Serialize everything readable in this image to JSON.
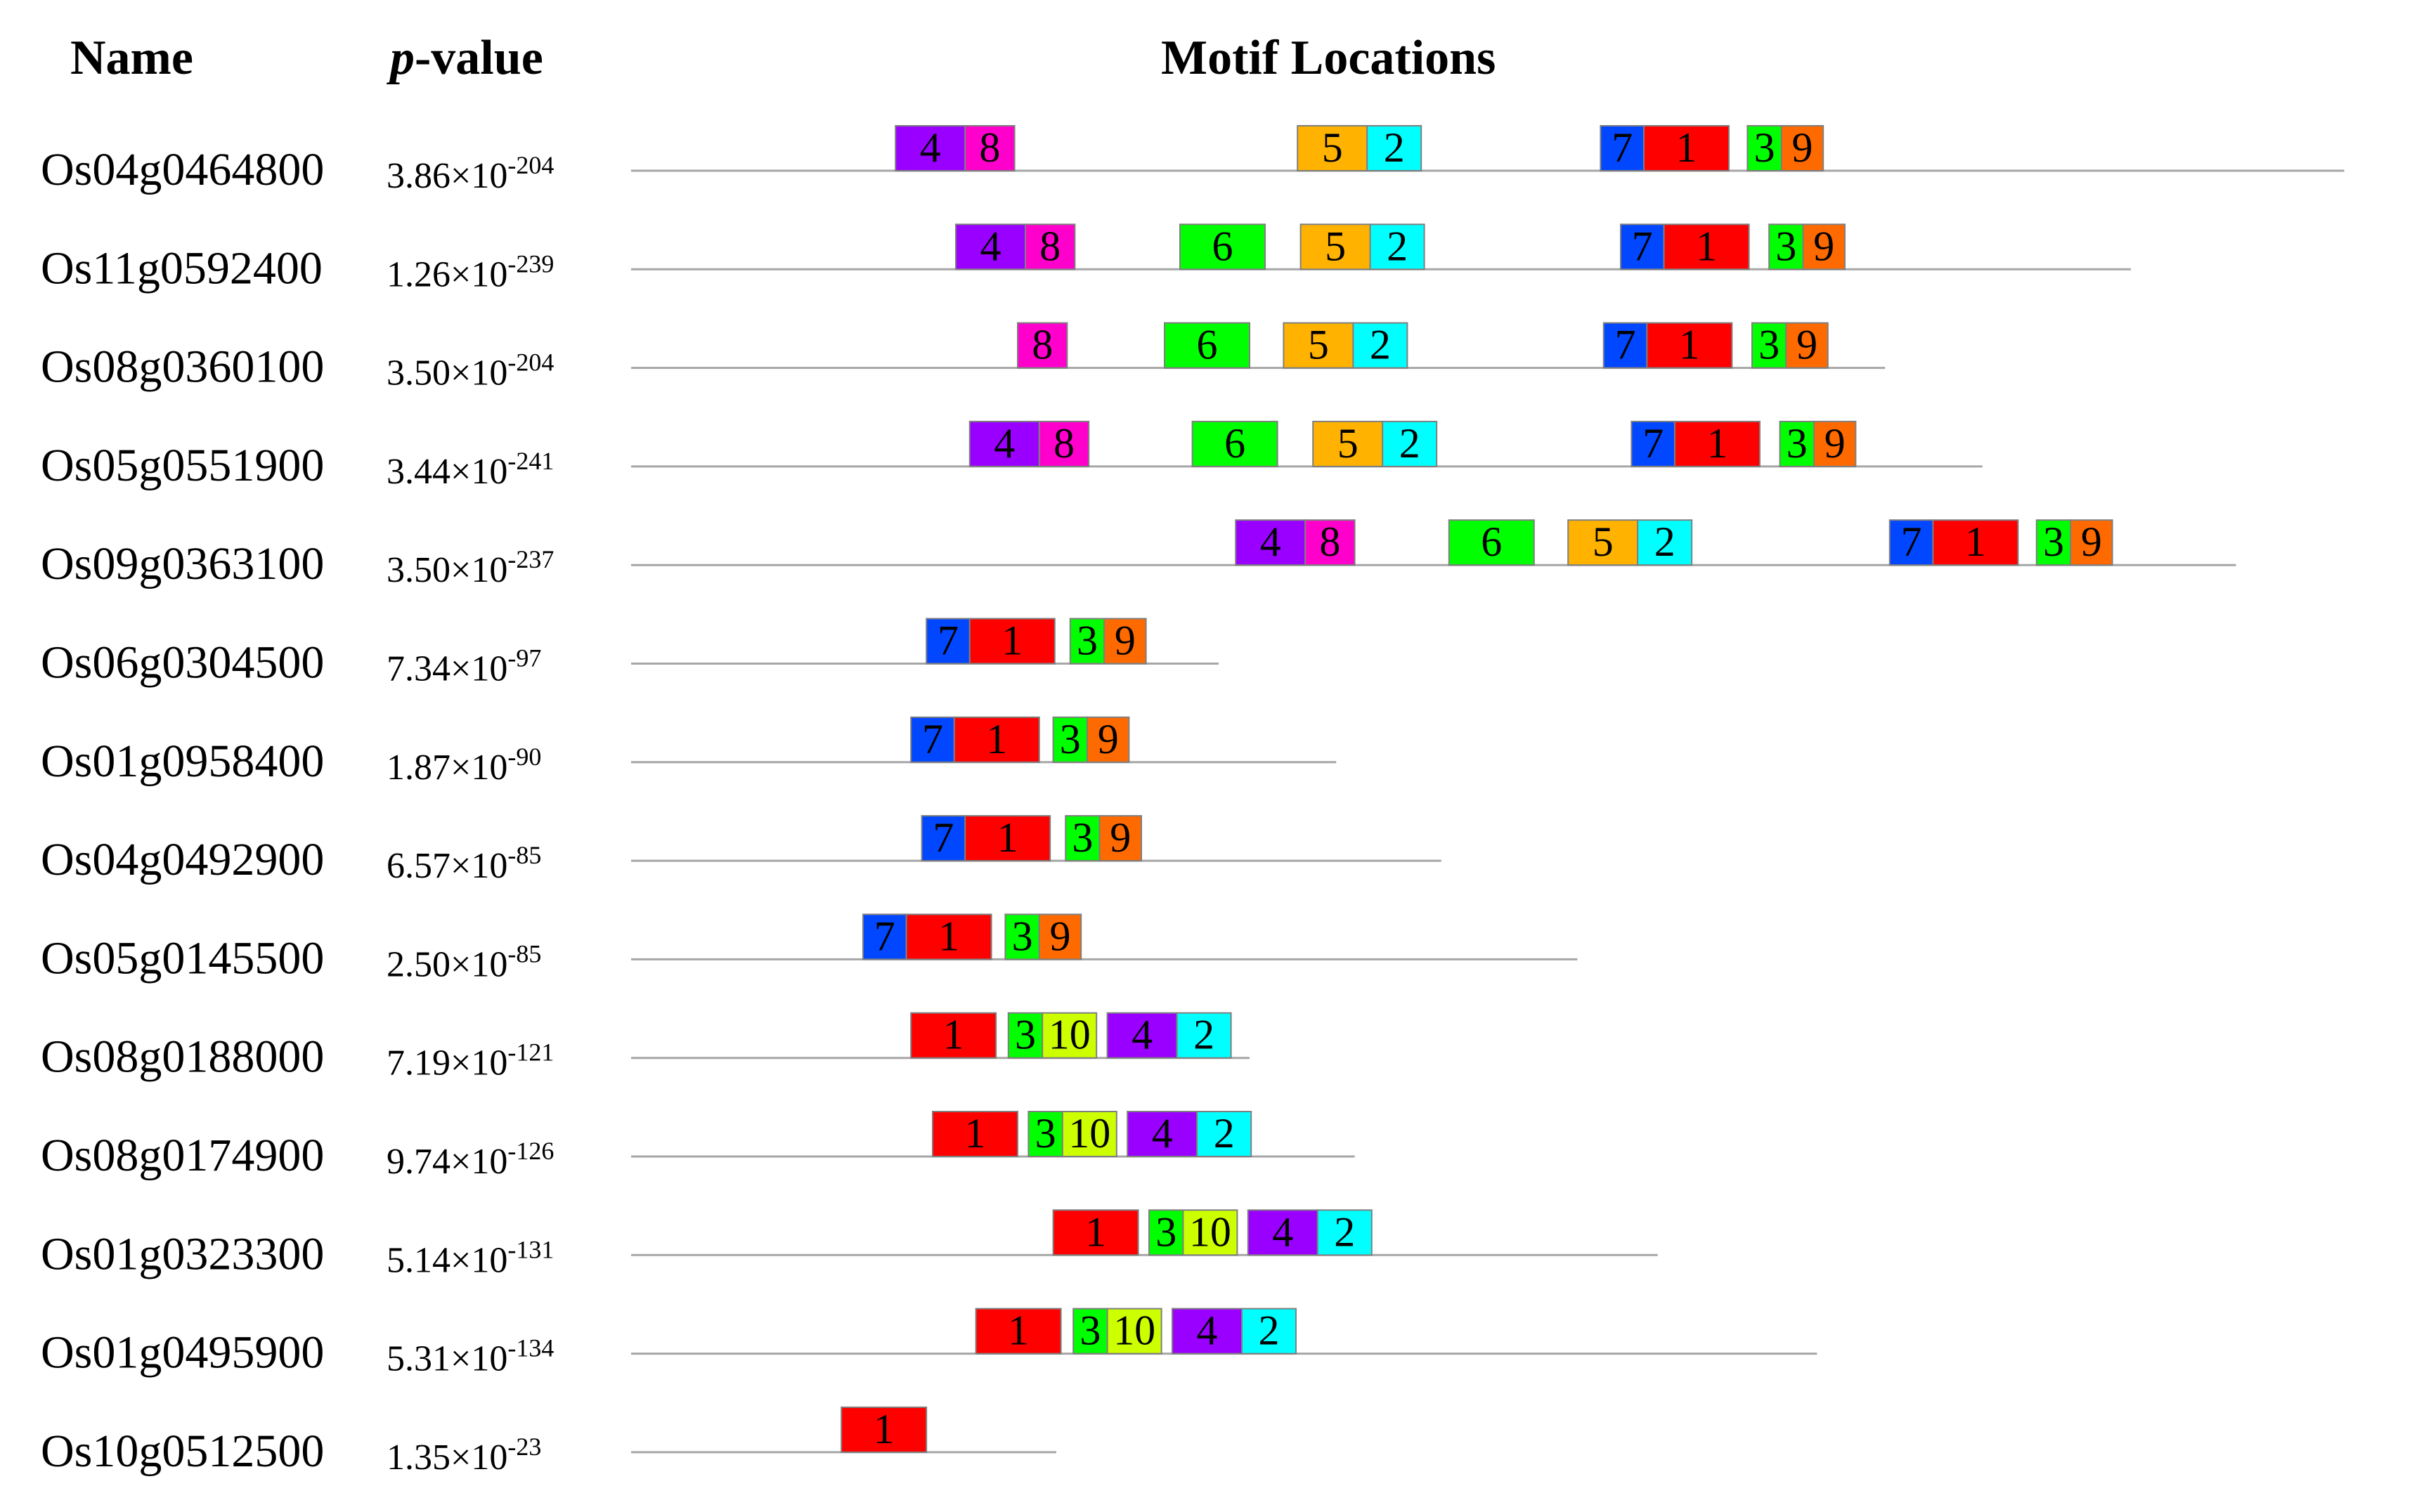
{
  "headers": {
    "name": "Name",
    "p_prefix": "p",
    "p_suffix": "-value",
    "motifs": "Motif Locations"
  },
  "times_symbol": "×10",
  "motif_colors": {
    "1": "#ff0000",
    "2": "#00ffff",
    "3": "#00ff00",
    "4": "#9900ff",
    "5": "#ffb300",
    "6": "#00ff00",
    "7": "#0047ff",
    "8": "#ff00cc",
    "9": "#ff6a00",
    "10": "#ccff00"
  },
  "motif_lengths": {
    "1": 55,
    "2": 35,
    "3": 22,
    "4": 45,
    "5": 45,
    "6": 55,
    "7": 28,
    "8": 32,
    "9": 27,
    "10": 35
  },
  "genes": [
    {
      "name": "Os04g0464800",
      "p_mantissa": "3.86",
      "p_exponent": "-204",
      "length": 1108,
      "motifs": [
        {
          "id": "4",
          "start": 171
        },
        {
          "id": "8",
          "start": 216
        },
        {
          "id": "5",
          "start": 431
        },
        {
          "id": "2",
          "start": 476
        },
        {
          "id": "7",
          "start": 627
        },
        {
          "id": "1",
          "start": 655
        },
        {
          "id": "3",
          "start": 722
        },
        {
          "id": "9",
          "start": 744
        }
      ]
    },
    {
      "name": "Os11g0592400",
      "p_mantissa": "1.26",
      "p_exponent": "-239",
      "length": 970,
      "motifs": [
        {
          "id": "4",
          "start": 210
        },
        {
          "id": "8",
          "start": 255
        },
        {
          "id": "6",
          "start": 355
        },
        {
          "id": "5",
          "start": 433
        },
        {
          "id": "2",
          "start": 478
        },
        {
          "id": "7",
          "start": 640
        },
        {
          "id": "1",
          "start": 668
        },
        {
          "id": "3",
          "start": 736
        },
        {
          "id": "9",
          "start": 758
        }
      ]
    },
    {
      "name": "Os08g0360100",
      "p_mantissa": "3.50",
      "p_exponent": "-204",
      "length": 811,
      "motifs": [
        {
          "id": "8",
          "start": 250
        },
        {
          "id": "6",
          "start": 345
        },
        {
          "id": "5",
          "start": 422
        },
        {
          "id": "2",
          "start": 467
        },
        {
          "id": "7",
          "start": 629
        },
        {
          "id": "1",
          "start": 657
        },
        {
          "id": "3",
          "start": 725
        },
        {
          "id": "9",
          "start": 747
        }
      ]
    },
    {
      "name": "Os05g0551900",
      "p_mantissa": "3.44",
      "p_exponent": "-241",
      "length": 874,
      "motifs": [
        {
          "id": "4",
          "start": 219
        },
        {
          "id": "8",
          "start": 264
        },
        {
          "id": "6",
          "start": 363
        },
        {
          "id": "5",
          "start": 441
        },
        {
          "id": "2",
          "start": 486
        },
        {
          "id": "7",
          "start": 647
        },
        {
          "id": "1",
          "start": 675
        },
        {
          "id": "3",
          "start": 743
        },
        {
          "id": "9",
          "start": 765
        }
      ]
    },
    {
      "name": "Os09g0363100",
      "p_mantissa": "3.50",
      "p_exponent": "-237",
      "length": 1038,
      "motifs": [
        {
          "id": "4",
          "start": 391
        },
        {
          "id": "8",
          "start": 436
        },
        {
          "id": "6",
          "start": 529
        },
        {
          "id": "5",
          "start": 606
        },
        {
          "id": "2",
          "start": 651
        },
        {
          "id": "7",
          "start": 814
        },
        {
          "id": "1",
          "start": 842
        },
        {
          "id": "3",
          "start": 909
        },
        {
          "id": "9",
          "start": 931
        }
      ]
    },
    {
      "name": "Os06g0304500",
      "p_mantissa": "7.34",
      "p_exponent": "-97",
      "length": 380,
      "motifs": [
        {
          "id": "7",
          "start": 191
        },
        {
          "id": "1",
          "start": 219
        },
        {
          "id": "3",
          "start": 284
        },
        {
          "id": "9",
          "start": 306
        }
      ]
    },
    {
      "name": "Os01g0958400",
      "p_mantissa": "1.87",
      "p_exponent": "-90",
      "length": 456,
      "motifs": [
        {
          "id": "7",
          "start": 181
        },
        {
          "id": "1",
          "start": 209
        },
        {
          "id": "3",
          "start": 273
        },
        {
          "id": "9",
          "start": 295
        }
      ]
    },
    {
      "name": "Os04g0492900",
      "p_mantissa": "6.57",
      "p_exponent": "-85",
      "length": 524,
      "motifs": [
        {
          "id": "7",
          "start": 188
        },
        {
          "id": "1",
          "start": 216
        },
        {
          "id": "3",
          "start": 281
        },
        {
          "id": "9",
          "start": 303
        }
      ]
    },
    {
      "name": "Os05g0145500",
      "p_mantissa": "2.50",
      "p_exponent": "-85",
      "length": 612,
      "motifs": [
        {
          "id": "7",
          "start": 150
        },
        {
          "id": "1",
          "start": 178
        },
        {
          "id": "3",
          "start": 242
        },
        {
          "id": "9",
          "start": 264
        }
      ]
    },
    {
      "name": "Os08g0188000",
      "p_mantissa": "7.19",
      "p_exponent": "-121",
      "length": 400,
      "motifs": [
        {
          "id": "1",
          "start": 181
        },
        {
          "id": "3",
          "start": 244
        },
        {
          "id": "10",
          "start": 266
        },
        {
          "id": "4",
          "start": 308
        },
        {
          "id": "2",
          "start": 353
        }
      ]
    },
    {
      "name": "Os08g0174900",
      "p_mantissa": "9.74",
      "p_exponent": "-126",
      "length": 468,
      "motifs": [
        {
          "id": "1",
          "start": 195
        },
        {
          "id": "3",
          "start": 257
        },
        {
          "id": "10",
          "start": 279
        },
        {
          "id": "4",
          "start": 321
        },
        {
          "id": "2",
          "start": 366
        }
      ]
    },
    {
      "name": "Os01g0323300",
      "p_mantissa": "5.14",
      "p_exponent": "-131",
      "length": 664,
      "motifs": [
        {
          "id": "1",
          "start": 273
        },
        {
          "id": "3",
          "start": 335
        },
        {
          "id": "10",
          "start": 357
        },
        {
          "id": "4",
          "start": 399
        },
        {
          "id": "2",
          "start": 444
        }
      ]
    },
    {
      "name": "Os01g0495900",
      "p_mantissa": "5.31",
      "p_exponent": "-134",
      "length": 767,
      "motifs": [
        {
          "id": "1",
          "start": 223
        },
        {
          "id": "3",
          "start": 286
        },
        {
          "id": "10",
          "start": 308
        },
        {
          "id": "4",
          "start": 350
        },
        {
          "id": "2",
          "start": 395
        }
      ]
    },
    {
      "name": "Os10g0512500",
      "p_mantissa": "1.35",
      "p_exponent": "-23",
      "length": 275,
      "motifs": [
        {
          "id": "1",
          "start": 136
        }
      ]
    }
  ]
}
